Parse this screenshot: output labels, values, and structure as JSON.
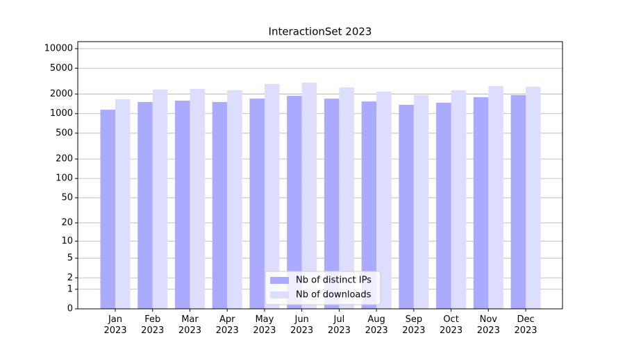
{
  "chart_data": {
    "type": "bar",
    "title": "InteractionSet 2023",
    "categories": [
      "Jan\n2023",
      "Feb\n2023",
      "Mar\n2023",
      "Apr\n2023",
      "May\n2023",
      "Jun\n2023",
      "Jul\n2023",
      "Aug\n2023",
      "Sep\n2023",
      "Oct\n2023",
      "Nov\n2023",
      "Dec\n2023"
    ],
    "series": [
      {
        "name": "Nb of distinct IPs",
        "color": "#aaaaff",
        "values": [
          1150,
          1510,
          1585,
          1510,
          1705,
          1880,
          1700,
          1540,
          1370,
          1470,
          1790,
          1930
        ]
      },
      {
        "name": "Nb of downloads",
        "color": "#ddddff",
        "values": [
          1665,
          2350,
          2405,
          2290,
          2860,
          3000,
          2530,
          2180,
          1930,
          2290,
          2650,
          2590
        ]
      }
    ],
    "yscale": "log1p",
    "ylim": [
      0,
      12800
    ],
    "yticks": [
      0,
      1,
      2,
      5,
      10,
      20,
      50,
      100,
      200,
      500,
      1000,
      2000,
      5000,
      10000
    ],
    "grid": true,
    "legend": "lower center"
  }
}
